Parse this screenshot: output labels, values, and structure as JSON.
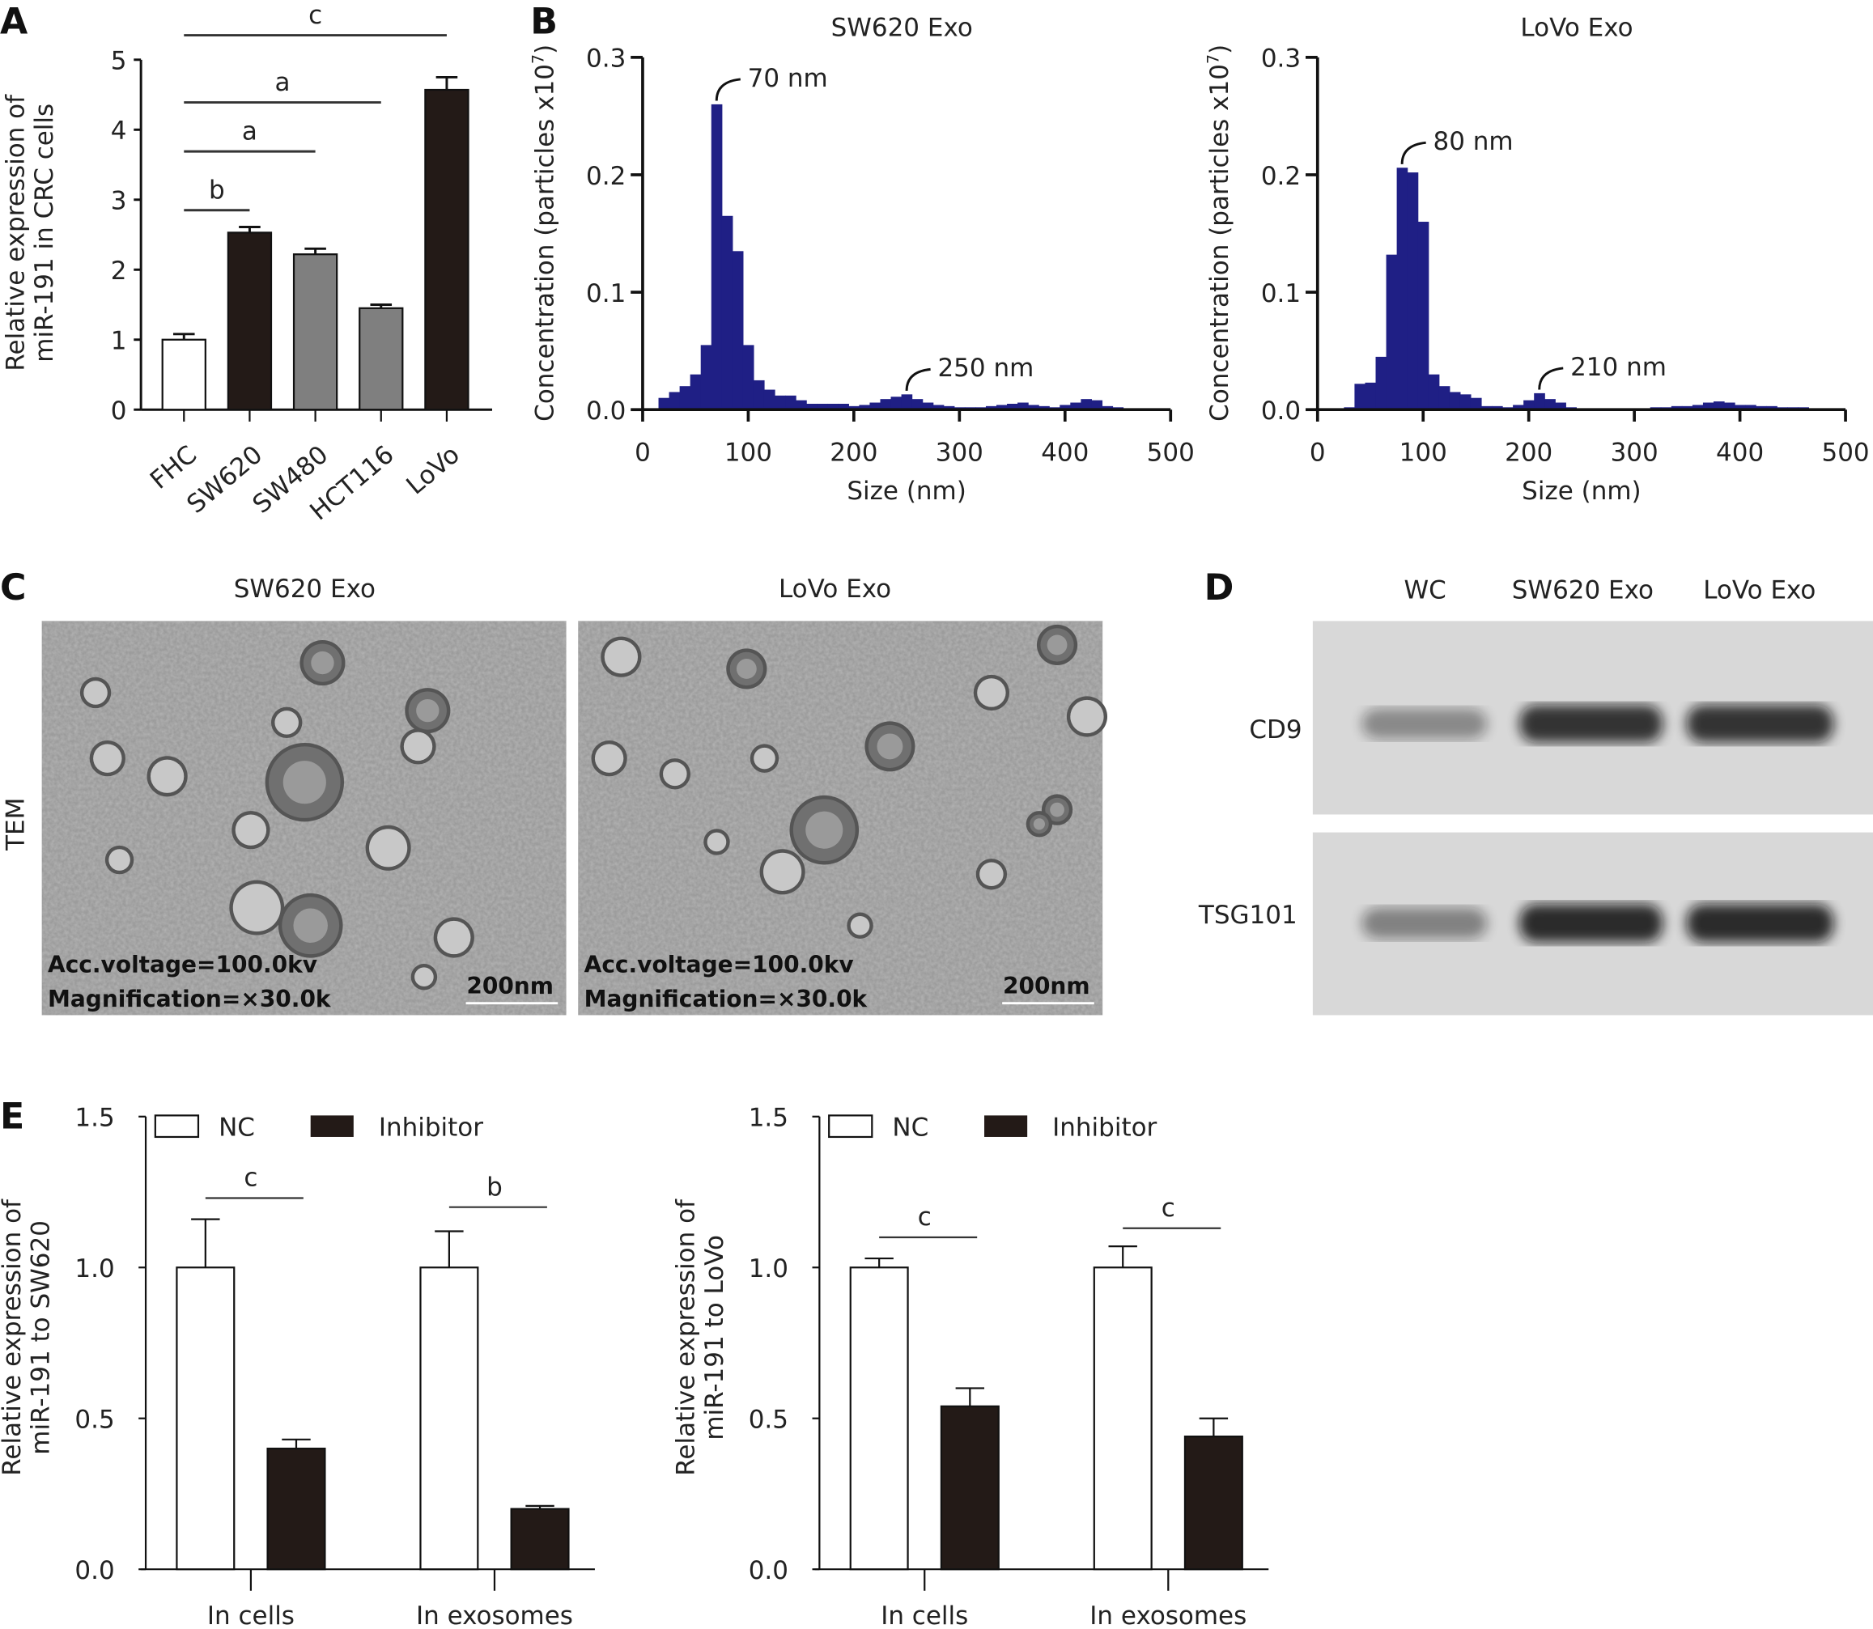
{
  "colors": {
    "black_bar": "#231a17",
    "gray_bar": "#7f7f7f",
    "white_bar": "#ffffff",
    "histogram": "#1f1f85",
    "axis": "#111111"
  },
  "panels": {
    "A": "A",
    "B": "B",
    "C": "C",
    "D": "D",
    "E": "E"
  },
  "chart_data": [
    {
      "id": "A",
      "type": "bar",
      "ylabel_lines": [
        "Relative expression of",
        "miR-191 in CRC cells"
      ],
      "categories": [
        "FHC",
        "SW620",
        "SW480",
        "HCT116",
        "LoVo"
      ],
      "values": [
        1.0,
        2.53,
        2.22,
        1.45,
        4.57
      ],
      "errors": [
        0.08,
        0.08,
        0.08,
        0.05,
        0.18
      ],
      "bar_colors": [
        "white",
        "black",
        "gray",
        "gray",
        "black"
      ],
      "ylim": [
        0,
        5
      ],
      "yticks": [
        "0",
        "1",
        "2",
        "3",
        "4",
        "5"
      ],
      "significance": [
        {
          "from": 0,
          "to": 1,
          "label": "b",
          "level": 2.85
        },
        {
          "from": 0,
          "to": 2,
          "label": "a",
          "level": 3.69
        },
        {
          "from": 0,
          "to": 3,
          "label": "a",
          "level": 4.39
        },
        {
          "from": 0,
          "to": 4,
          "label": "c",
          "level": 5.35
        }
      ]
    },
    {
      "id": "B1",
      "type": "bar",
      "title": "SW620 Exo",
      "xlabel": "Size (nm)",
      "ylabel": "Concentration (particles x10",
      "ylabel_sup": "7",
      "ylabel_end": ")",
      "xlim": [
        0,
        500
      ],
      "ylim": [
        0,
        0.3
      ],
      "xticks": [
        "0",
        "100",
        "200",
        "300",
        "400",
        "500"
      ],
      "yticks": [
        "0.0",
        "0.1",
        "0.2",
        "0.3"
      ],
      "bin_width": 10,
      "bin_centers": [
        20,
        30,
        40,
        50,
        60,
        70,
        80,
        90,
        100,
        110,
        120,
        130,
        140,
        150,
        160,
        170,
        180,
        190,
        200,
        210,
        220,
        230,
        240,
        250,
        260,
        270,
        280,
        290,
        300,
        310,
        320,
        330,
        340,
        350,
        360,
        370,
        380,
        390,
        400,
        410,
        420,
        430,
        440,
        450,
        460,
        470,
        480,
        490
      ],
      "values": [
        0.01,
        0.015,
        0.02,
        0.03,
        0.055,
        0.26,
        0.165,
        0.135,
        0.055,
        0.025,
        0.017,
        0.012,
        0.012,
        0.008,
        0.005,
        0.005,
        0.005,
        0.005,
        0.003,
        0.004,
        0.006,
        0.009,
        0.011,
        0.013,
        0.009,
        0.006,
        0.004,
        0.003,
        0.002,
        0.002,
        0.002,
        0.003,
        0.004,
        0.005,
        0.006,
        0.004,
        0.003,
        0.002,
        0.004,
        0.006,
        0.009,
        0.008,
        0.003,
        0.002,
        0.001,
        0.001,
        0.001,
        0.001
      ],
      "annotations": [
        {
          "x": 70,
          "y": 0.26,
          "label": "70 nm"
        },
        {
          "x": 250,
          "y": 0.013,
          "label": "250 nm"
        }
      ]
    },
    {
      "id": "B2",
      "type": "bar",
      "title": "LoVo Exo",
      "xlabel": "Size (nm)",
      "ylabel": "Concentration (particles x10",
      "ylabel_sup": "7",
      "ylabel_end": ")",
      "xlim": [
        0,
        500
      ],
      "ylim": [
        0,
        0.3
      ],
      "xticks": [
        "0",
        "100",
        "200",
        "300",
        "400",
        "500"
      ],
      "yticks": [
        "0.0",
        "0.1",
        "0.2",
        "0.3"
      ],
      "bin_width": 10,
      "bin_centers": [
        20,
        30,
        40,
        50,
        60,
        70,
        80,
        90,
        100,
        110,
        120,
        130,
        140,
        150,
        160,
        170,
        180,
        190,
        200,
        210,
        220,
        230,
        240,
        250,
        260,
        270,
        280,
        290,
        300,
        310,
        320,
        330,
        340,
        350,
        360,
        370,
        380,
        390,
        400,
        410,
        420,
        430,
        440,
        450,
        460,
        470
      ],
      "values": [
        0.001,
        0.002,
        0.022,
        0.023,
        0.045,
        0.132,
        0.206,
        0.202,
        0.16,
        0.03,
        0.02,
        0.015,
        0.013,
        0.01,
        0.003,
        0.003,
        0.002,
        0.004,
        0.008,
        0.014,
        0.009,
        0.006,
        0.002,
        0.001,
        0.001,
        0.001,
        0.001,
        0.001,
        0.001,
        0.001,
        0.002,
        0.002,
        0.003,
        0.003,
        0.004,
        0.006,
        0.007,
        0.006,
        0.004,
        0.004,
        0.003,
        0.003,
        0.002,
        0.002,
        0.002,
        0.001
      ],
      "annotations": [
        {
          "x": 80,
          "y": 0.206,
          "label": "80 nm"
        },
        {
          "x": 210,
          "y": 0.014,
          "label": "210 nm"
        }
      ]
    },
    {
      "id": "E1",
      "type": "bar",
      "ylabel_lines": [
        "Relative expression of",
        "miR-191 to SW620"
      ],
      "categories": [
        "In cells",
        "In exosomes"
      ],
      "series": [
        {
          "name": "NC",
          "values": [
            1.0,
            1.0
          ],
          "errors": [
            0.16,
            0.12
          ]
        },
        {
          "name": "Inhibitor",
          "values": [
            0.4,
            0.2
          ],
          "errors": [
            0.03,
            0.01
          ]
        }
      ],
      "ylim": [
        0,
        1.5
      ],
      "yticks": [
        "0.0",
        "0.5",
        "1.0",
        "1.5"
      ],
      "significance": [
        {
          "group": 0,
          "label": "c",
          "level": 1.23
        },
        {
          "group": 1,
          "label": "b",
          "level": 1.2
        }
      ],
      "legend": "top-left"
    },
    {
      "id": "E2",
      "type": "bar",
      "ylabel_lines": [
        "Relative expression of",
        "miR-191 to LoVo"
      ],
      "categories": [
        "In cells",
        "In exosomes"
      ],
      "series": [
        {
          "name": "NC",
          "values": [
            1.0,
            1.0
          ],
          "errors": [
            0.03,
            0.07
          ]
        },
        {
          "name": "Inhibitor",
          "values": [
            0.54,
            0.44
          ],
          "errors": [
            0.06,
            0.06
          ]
        }
      ],
      "ylim": [
        0,
        1.5
      ],
      "yticks": [
        "0.0",
        "0.5",
        "1.0",
        "1.5"
      ],
      "significance": [
        {
          "group": 0,
          "label": "c",
          "level": 1.1
        },
        {
          "group": 1,
          "label": "c",
          "level": 1.13
        }
      ],
      "legend": "top-left"
    }
  ],
  "tem": {
    "titles": [
      "SW620 Exo",
      "LoVo Exo"
    ],
    "side_label": "TEM",
    "captions": [
      [
        "Acc.voltage=100.0kv",
        "Magnification=×30.0k"
      ],
      [
        "Acc.voltage=100.0kv",
        "Magnification=×30.0k"
      ]
    ],
    "scale_bar": "200nm"
  },
  "western": {
    "lanes": [
      "WC",
      "SW620 Exo",
      "LoVo Exo"
    ],
    "proteins": [
      "CD9",
      "TSG101"
    ],
    "band_intensity": [
      [
        0.45,
        0.95,
        0.95
      ],
      [
        0.5,
        1.0,
        1.0
      ]
    ]
  }
}
